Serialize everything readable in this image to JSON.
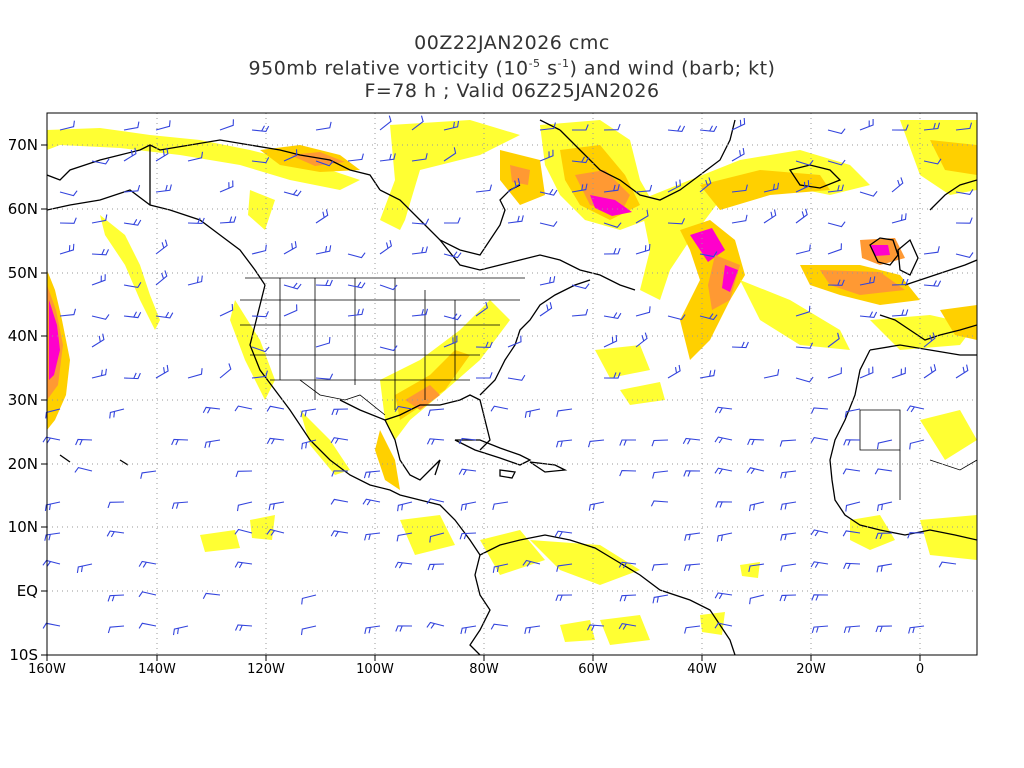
{
  "title": {
    "line1": "00Z22JAN2026 cmc",
    "line2_pre": "950mb relative vorticity (10",
    "line2_exp1": "-5",
    "line2_mid": " s",
    "line2_exp2": "-1",
    "line2_post": ") and wind (barb; kt)",
    "line3": "F=78 h ; Valid 06Z25JAN2026"
  },
  "axes": {
    "lon_ticks": [
      "160W",
      "140W",
      "120W",
      "100W",
      "80W",
      "60W",
      "40W",
      "20W",
      "0"
    ],
    "lat_ticks": [
      "70N",
      "60N",
      "50N",
      "40N",
      "30N",
      "20N",
      "10N",
      "EQ",
      "10S"
    ],
    "lon_range": [
      -160,
      10
    ],
    "lat_range": [
      -10,
      75
    ],
    "grid": "dotted"
  },
  "colors": {
    "vort_light": "#ffff33",
    "vort_mid": "#ffd000",
    "vort_high": "#ff9933",
    "vort_max": "#ff00cc",
    "barb": "#3344dd",
    "coast": "#000000",
    "grid": "#999999"
  }
}
